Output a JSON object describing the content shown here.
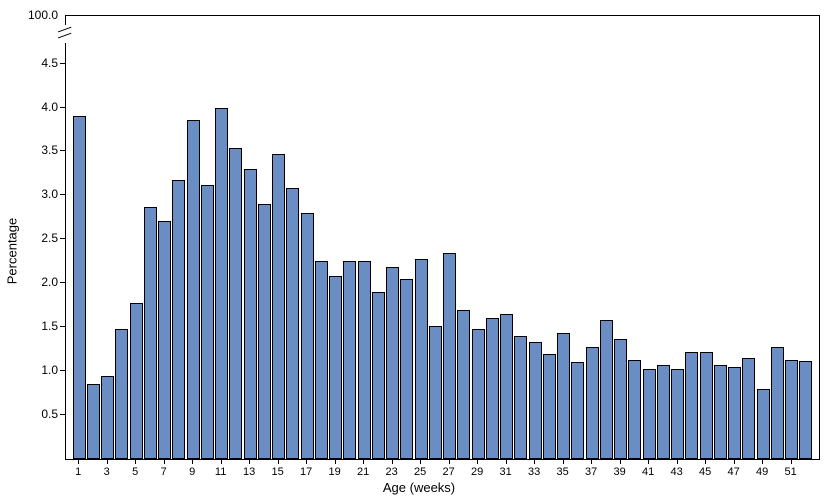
{
  "chart": {
    "type": "bar",
    "x_axis_title": "Age (weeks)",
    "y_axis_title": "Percentage",
    "background_color": "#ffffff",
    "border_color": "#000000",
    "axis_font_size": 12,
    "title_font_size": 13,
    "bar_color": "#6a8ec3",
    "bar_border_color": "#000000",
    "bar_width_ratio": 0.92,
    "has_axis_break": true,
    "y_top_label": "100.0",
    "y_visible_max": 4.7,
    "y_ticks": [
      0.5,
      1.0,
      1.5,
      2.0,
      2.5,
      3.0,
      3.5,
      4.0,
      4.5
    ],
    "x_tick_labels": [
      1,
      3,
      5,
      7,
      9,
      11,
      13,
      15,
      17,
      19,
      21,
      23,
      25,
      27,
      29,
      31,
      33,
      35,
      37,
      39,
      41,
      43,
      45,
      47,
      49,
      51
    ],
    "categories": [
      1,
      2,
      3,
      4,
      5,
      6,
      7,
      8,
      9,
      10,
      11,
      12,
      13,
      14,
      15,
      16,
      17,
      18,
      19,
      20,
      21,
      22,
      23,
      24,
      25,
      26,
      27,
      28,
      29,
      30,
      31,
      32,
      33,
      34,
      35,
      36,
      37,
      38,
      39,
      40,
      41,
      42,
      43,
      44,
      45,
      46,
      47,
      48,
      49,
      50,
      51,
      52
    ],
    "values": [
      3.9,
      0.85,
      0.95,
      1.48,
      1.77,
      2.87,
      2.71,
      3.18,
      3.86,
      3.12,
      4.0,
      3.54,
      3.3,
      2.9,
      3.47,
      3.08,
      2.8,
      2.25,
      2.08,
      2.25,
      2.25,
      1.9,
      2.18,
      2.05,
      2.28,
      1.51,
      2.35,
      1.7,
      1.48,
      1.6,
      1.65,
      1.4,
      1.33,
      1.2,
      1.43,
      1.1,
      1.27,
      1.58,
      1.37,
      1.13,
      1.02,
      1.07,
      1.02,
      1.22,
      1.22,
      1.07,
      1.05,
      1.15,
      0.8,
      1.27,
      1.13,
      1.12
    ]
  }
}
